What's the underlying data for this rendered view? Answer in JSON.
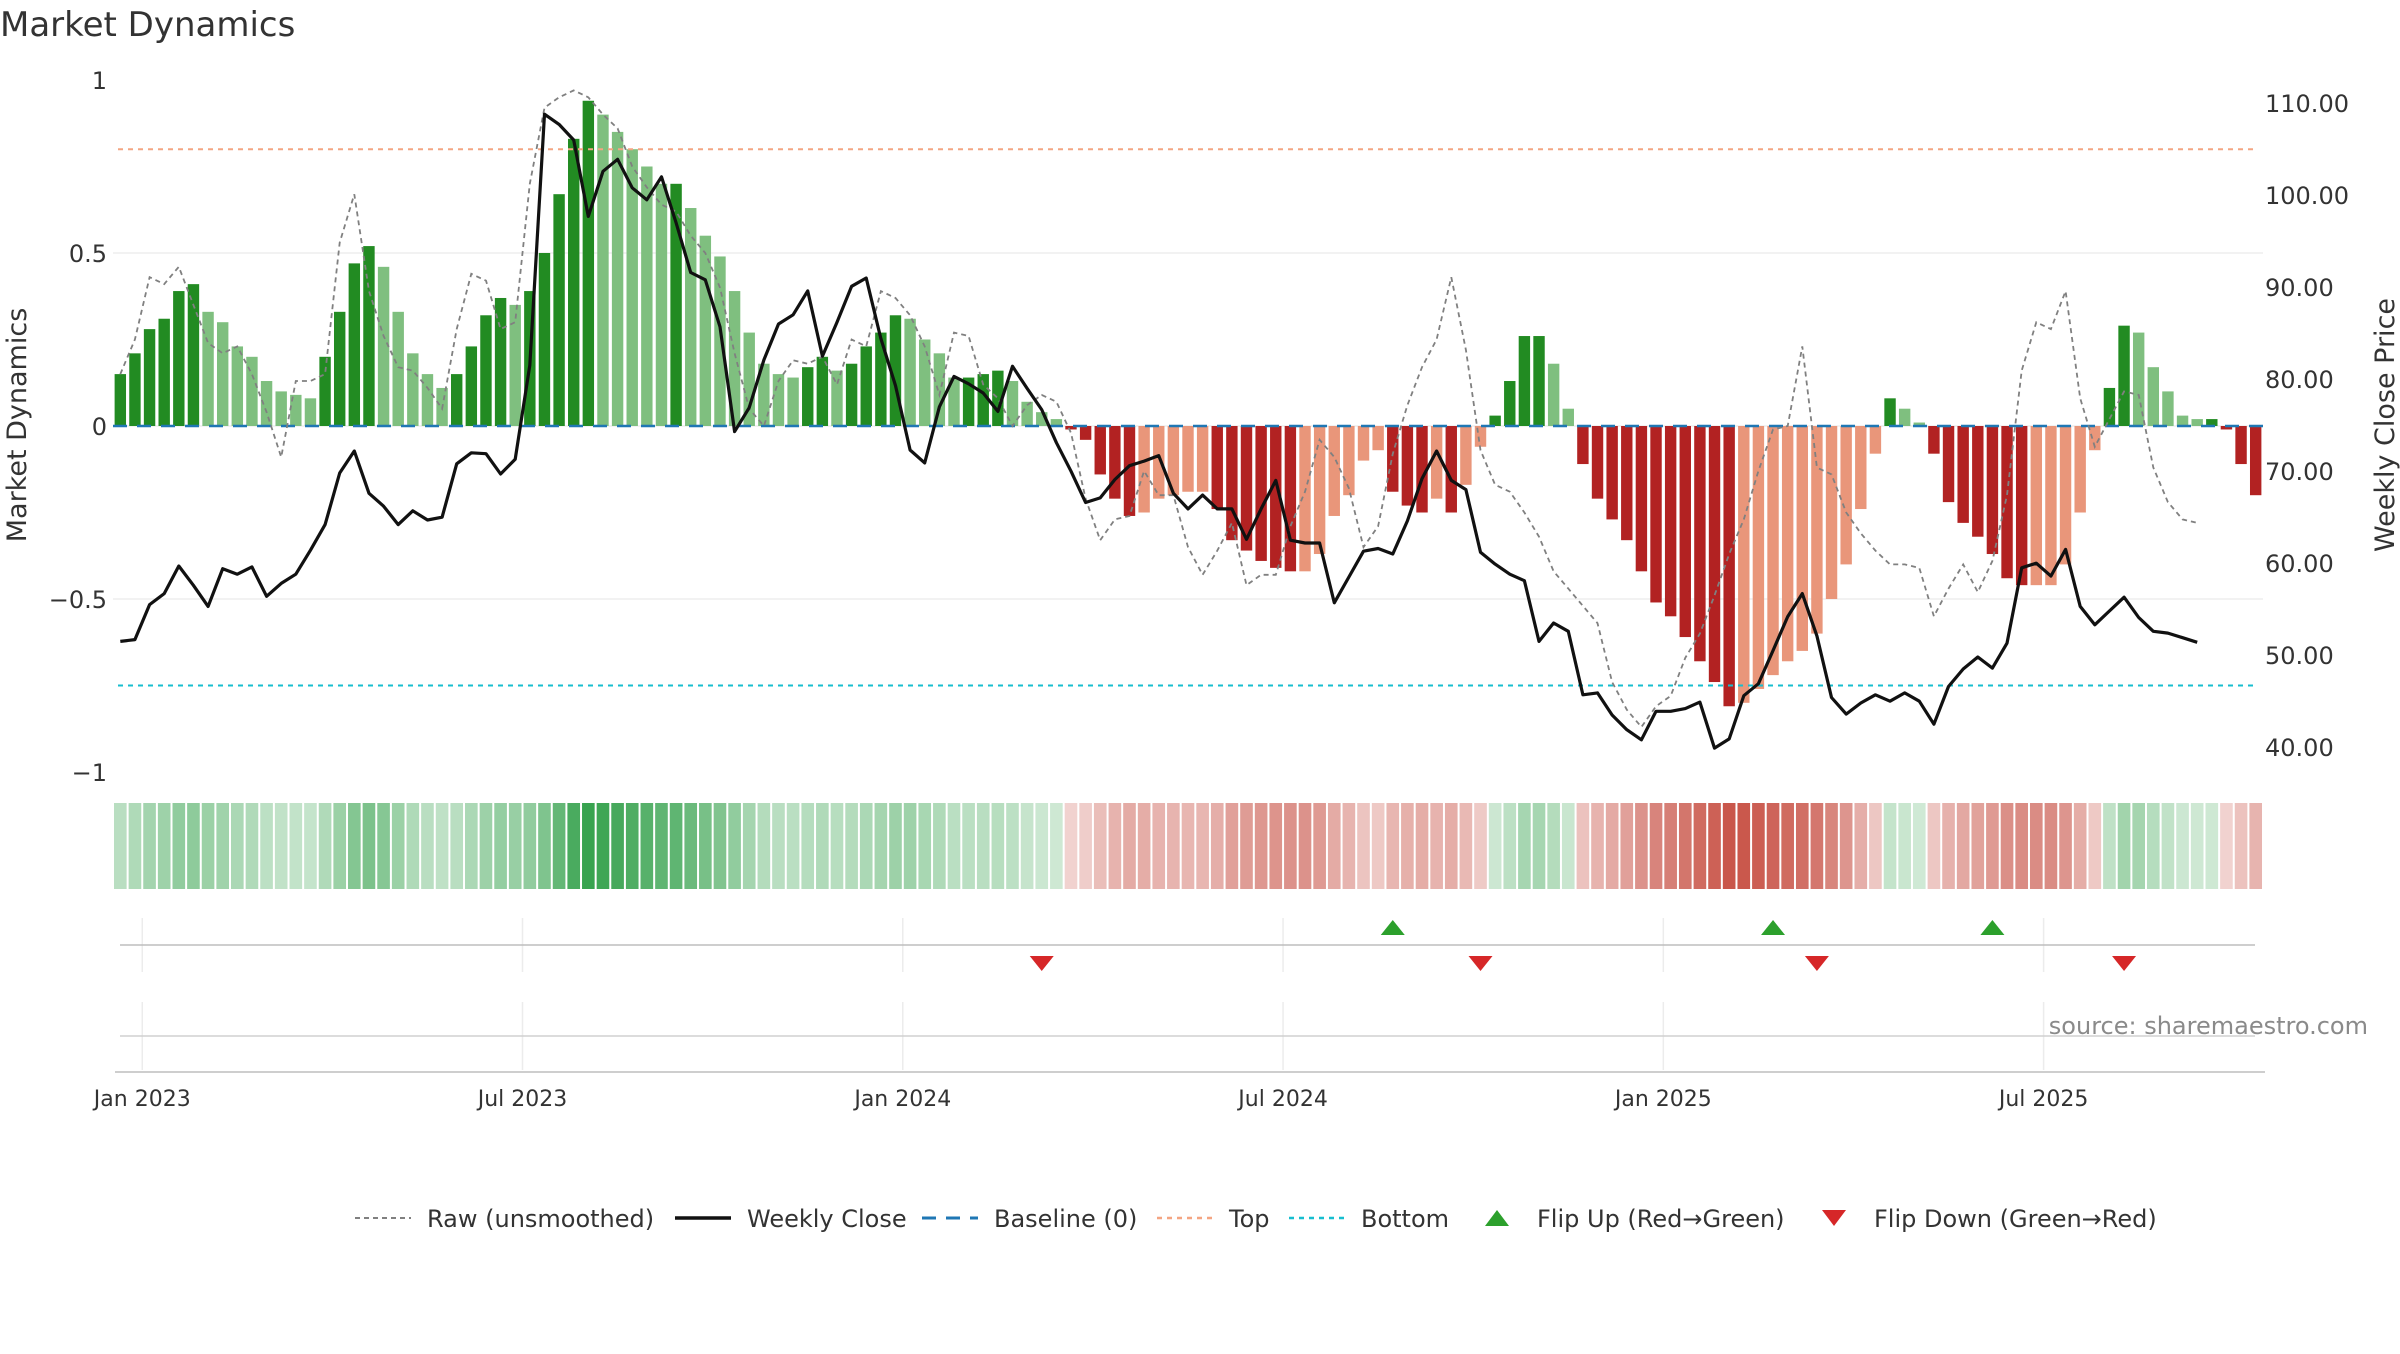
{
  "chart_data": {
    "type": "bar",
    "title": "Market Dynamics",
    "ylabel": "Market Dynamics",
    "y2label": "Weekly Close Price",
    "source": "source: sharemaestro.com",
    "ylim": [
      -1.0,
      1.0
    ],
    "y2lim": [
      35.0,
      110.0
    ],
    "yticks": [
      {
        "value": 1,
        "label": "1"
      },
      {
        "value": 0.5,
        "label": "0.5"
      },
      {
        "value": 0,
        "label": "0"
      },
      {
        "value": -0.5,
        "label": "−0.5"
      },
      {
        "value": -1,
        "label": "−1"
      }
    ],
    "y2ticks": [
      {
        "value": 110,
        "label": "110.00"
      },
      {
        "value": 100,
        "label": "100.00"
      },
      {
        "value": 90,
        "label": "90.00"
      },
      {
        "value": 80,
        "label": "80.00"
      },
      {
        "value": 70,
        "label": "70.00"
      },
      {
        "value": 60,
        "label": "60.00"
      },
      {
        "value": 50,
        "label": "50.00"
      },
      {
        "value": 40,
        "label": "40.00"
      }
    ],
    "xticks": [
      {
        "week": 1.5,
        "label": "Jan 2023"
      },
      {
        "week": 27.5,
        "label": "Jul 2023"
      },
      {
        "week": 53.5,
        "label": "Jan 2024"
      },
      {
        "week": 79.5,
        "label": "Jul 2024"
      },
      {
        "week": 105.5,
        "label": "Jan 2025"
      },
      {
        "week": 131.5,
        "label": "Jul 2025"
      }
    ],
    "top_level": 0.8,
    "bottom_level": -0.75,
    "grid": true,
    "legend_position": "bottom-center",
    "colors": {
      "green_strong": "#228b22",
      "green_light": "#7fbf7f",
      "red_strong": "#b22222",
      "red_light": "#e9967a",
      "raw": "#808080",
      "close": "#111111",
      "baseline": "#1f77b4",
      "top": "#f4a582",
      "bottom": "#17becf",
      "flip_up": "#2ca02c",
      "flip_down": "#d62728",
      "heat_green": "#2e9e46",
      "heat_red": "#c0392b"
    },
    "series": [
      {
        "name": "Market Dynamics",
        "values": [
          0.15,
          0.21,
          0.28,
          0.31,
          0.39,
          0.41,
          0.33,
          0.3,
          0.23,
          0.2,
          0.13,
          0.1,
          0.09,
          0.08,
          0.2,
          0.33,
          0.47,
          0.52,
          0.46,
          0.33,
          0.21,
          0.15,
          0.11,
          0.15,
          0.23,
          0.32,
          0.37,
          0.35,
          0.39,
          0.5,
          0.67,
          0.83,
          0.94,
          0.9,
          0.85,
          0.8,
          0.75,
          0.7,
          0.7,
          0.63,
          0.55,
          0.49,
          0.39,
          0.27,
          0.18,
          0.15,
          0.14,
          0.17,
          0.2,
          0.16,
          0.18,
          0.23,
          0.27,
          0.32,
          0.31,
          0.25,
          0.21,
          0.14,
          0.14,
          0.15,
          0.16,
          0.13,
          0.07,
          0.04,
          0.02,
          -0.01,
          -0.04,
          -0.14,
          -0.21,
          -0.26,
          -0.25,
          -0.21,
          -0.2,
          -0.19,
          -0.19,
          -0.24,
          -0.33,
          -0.36,
          -0.39,
          -0.41,
          -0.42,
          -0.42,
          -0.37,
          -0.26,
          -0.2,
          -0.1,
          -0.07,
          -0.19,
          -0.23,
          -0.25,
          -0.21,
          -0.25,
          -0.17,
          -0.06,
          0.03,
          0.13,
          0.26,
          0.26,
          0.18,
          0.05,
          -0.11,
          -0.21,
          -0.27,
          -0.33,
          -0.42,
          -0.51,
          -0.55,
          -0.61,
          -0.68,
          -0.74,
          -0.81,
          -0.8,
          -0.76,
          -0.72,
          -0.68,
          -0.65,
          -0.6,
          -0.5,
          -0.4,
          -0.24,
          -0.08,
          0.08,
          0.05,
          0.01,
          -0.08,
          -0.22,
          -0.28,
          -0.32,
          -0.37,
          -0.44,
          -0.46,
          -0.46,
          -0.46,
          -0.4,
          -0.25,
          -0.07,
          0.11,
          0.29,
          0.27,
          0.17,
          0.1,
          0.03,
          0.02,
          0.02,
          -0.01,
          -0.11,
          -0.2
        ]
      },
      {
        "name": "Raw (unsmoothed)",
        "values": [
          0.15,
          0.25,
          0.43,
          0.41,
          0.46,
          0.35,
          0.24,
          0.21,
          0.23,
          0.15,
          0.04,
          -0.09,
          0.13,
          0.13,
          0.15,
          0.53,
          0.67,
          0.39,
          0.26,
          0.17,
          0.16,
          0.11,
          0.05,
          0.28,
          0.44,
          0.42,
          0.28,
          0.3,
          0.7,
          0.92,
          0.95,
          0.97,
          0.95,
          0.9,
          0.86,
          0.75,
          0.69,
          0.64,
          0.62,
          0.55,
          0.5,
          0.4,
          0.21,
          0.05,
          0.0,
          0.13,
          0.19,
          0.18,
          0.2,
          0.12,
          0.25,
          0.23,
          0.39,
          0.37,
          0.32,
          0.23,
          0.09,
          0.27,
          0.26,
          0.12,
          0.08,
          0.0,
          0.06,
          0.09,
          0.07,
          -0.02,
          -0.21,
          -0.33,
          -0.27,
          -0.26,
          -0.13,
          -0.2,
          -0.2,
          -0.35,
          -0.43,
          -0.36,
          -0.28,
          -0.46,
          -0.43,
          -0.43,
          -0.29,
          -0.19,
          -0.04,
          -0.09,
          -0.18,
          -0.35,
          -0.29,
          -0.08,
          0.06,
          0.17,
          0.25,
          0.43,
          0.22,
          -0.07,
          -0.17,
          -0.19,
          -0.25,
          -0.32,
          -0.42,
          -0.47,
          -0.52,
          -0.57,
          -0.74,
          -0.82,
          -0.87,
          -0.81,
          -0.78,
          -0.67,
          -0.6,
          -0.49,
          -0.37,
          -0.27,
          -0.13,
          -0.01,
          0.0,
          0.23,
          -0.12,
          -0.14,
          -0.25,
          -0.31,
          -0.36,
          -0.4,
          -0.4,
          -0.41,
          -0.55,
          -0.47,
          -0.4,
          -0.48,
          -0.39,
          -0.2,
          0.16,
          0.3,
          0.28,
          0.39,
          0.08,
          -0.06,
          0.02,
          0.1,
          0.09,
          -0.12,
          -0.22,
          -0.27,
          -0.28
        ]
      },
      {
        "name": "Weekly Close",
        "values": [
          51.5,
          51.7,
          55.5,
          56.7,
          59.7,
          57.6,
          55.3,
          59.4,
          58.8,
          59.6,
          56.4,
          57.8,
          58.8,
          61.4,
          64.2,
          69.8,
          72.2,
          67.6,
          66.2,
          64.2,
          65.7,
          64.7,
          65.0,
          70.8,
          72.0,
          71.9,
          69.7,
          71.3,
          81.5,
          108.8,
          107.7,
          106.0,
          97.7,
          102.6,
          103.9,
          100.8,
          99.5,
          102.0,
          97.0,
          91.6,
          90.8,
          85.7,
          74.3,
          76.9,
          82.1,
          86.0,
          87.0,
          89.6,
          82.5,
          86.2,
          90.1,
          91.0,
          84.4,
          79.3,
          72.3,
          70.9,
          77.0,
          80.3,
          79.5,
          78.5,
          76.5,
          81.4,
          79.0,
          76.7,
          73.1,
          70.0,
          66.6,
          67.1,
          69.1,
          70.6,
          71.1,
          71.7,
          67.6,
          65.9,
          67.4,
          65.9,
          65.9,
          62.6,
          65.9,
          69.0,
          62.5,
          62.2,
          62.2,
          55.7,
          58.5,
          61.3,
          61.6,
          61.0,
          64.6,
          69.2,
          72.2,
          69.0,
          68.0,
          61.2,
          59.9,
          58.8,
          58.1,
          51.5,
          53.5,
          52.6,
          45.7,
          45.9,
          43.5,
          41.9,
          40.8,
          43.9,
          43.9,
          44.2,
          44.9,
          39.9,
          40.9,
          45.6,
          46.9,
          50.5,
          54.2,
          56.7,
          52.1,
          45.4,
          43.6,
          44.8,
          45.7,
          45.0,
          45.9,
          45.0,
          42.5,
          46.6,
          48.5,
          49.8,
          48.6,
          51.3,
          59.5,
          60.0,
          58.6,
          61.5,
          55.3,
          53.3,
          54.8,
          56.3,
          54.1,
          52.6,
          52.4,
          51.9,
          51.4
        ]
      }
    ],
    "baseline": {
      "name": "Baseline (0)",
      "value": 0
    },
    "top": {
      "name": "Top",
      "value": 0.8
    },
    "bottom": {
      "name": "Bottom",
      "value": -0.75
    },
    "flip_up": {
      "name": "Flip Up (Red→Green)",
      "weeks": [
        87,
        113,
        128
      ]
    },
    "flip_down": {
      "name": "Flip Down (Green→Red)",
      "weeks": [
        63,
        93,
        116,
        137
      ]
    }
  }
}
